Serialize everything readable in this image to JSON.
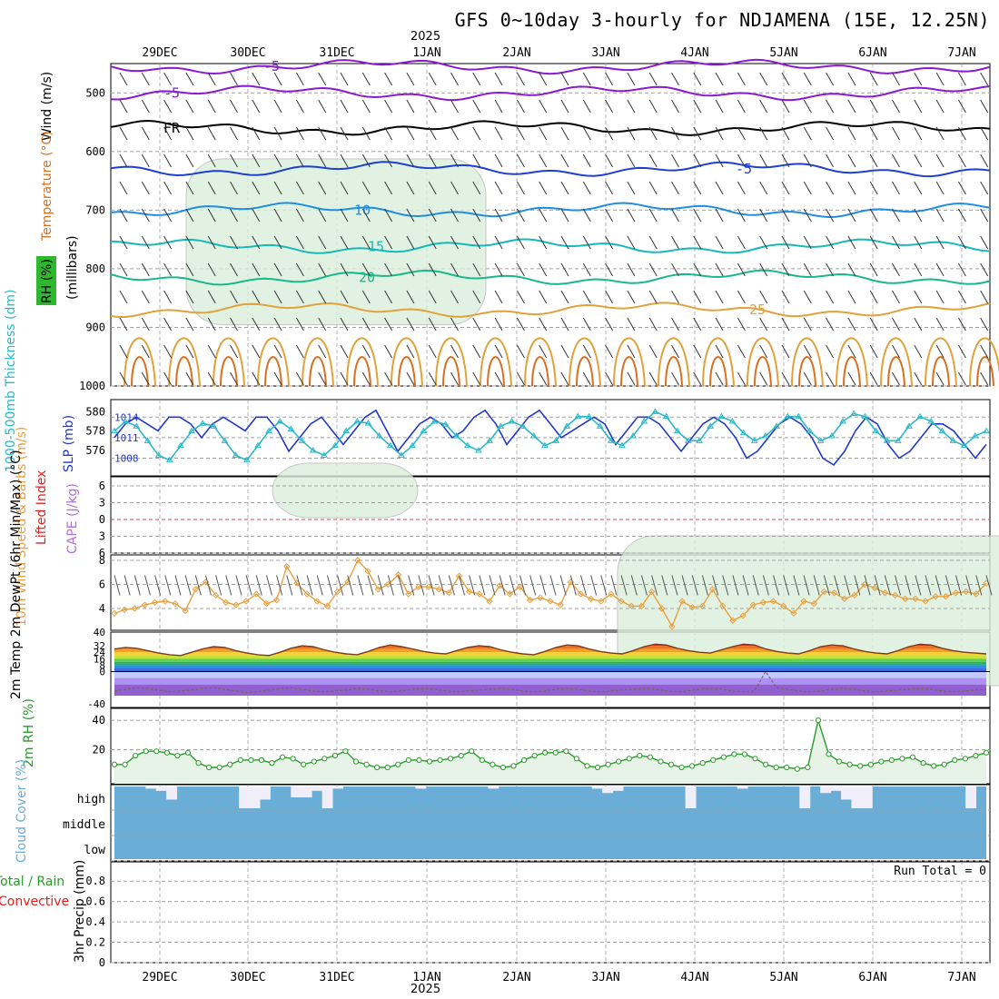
{
  "title": "GFS 0~10day 3-hourly for NDJAMENA (15E, 12.25N)",
  "year_label": "2025",
  "run_total": "Run Total = 0",
  "colors": {
    "purple": "#8a1ad0",
    "black": "#000000",
    "blue": "#1f3fd0",
    "lightblue": "#1e8ee0",
    "teal": "#17b8b8",
    "green": "#18b88a",
    "orange": "#e0a23a",
    "darkorange": "#d87020",
    "magenta": "#d0105a",
    "slp": "#2238c8",
    "thick": "#2ab8c8",
    "wind10m": "#e8a040",
    "rh2m": "#2a9a2a",
    "cloud": "#6aadd6",
    "grid": "#a0a0a0"
  },
  "chart_data": [
    {
      "panel": "upper-air",
      "type": "line",
      "y_axis_label": "(millibars)",
      "legend_labels": [
        "Wind (m/s)",
        "Temperature (°C)",
        "RH (%)"
      ],
      "ylim": [
        1000,
        450
      ],
      "y_ticks": [
        500,
        600,
        700,
        800,
        900,
        1000
      ],
      "x_ticks": [
        "29DEC",
        "30DEC",
        "31DEC",
        "1JAN",
        "2JAN",
        "3JAN",
        "4JAN",
        "5JAN",
        "6JAN",
        "7JAN"
      ],
      "isotherms": [
        {
          "label": "-5",
          "pressure": 455,
          "color": "#8a1ad0"
        },
        {
          "label": "-5",
          "pressure": 500,
          "color": "#8a1ad0"
        },
        {
          "label": "FR",
          "pressure": 560,
          "color": "#000000"
        },
        {
          "label": "-5",
          "pressure": 630,
          "color": "#1f3fd0"
        },
        {
          "label": "10",
          "pressure": 700,
          "color": "#1e8ee0"
        },
        {
          "label": "15",
          "pressure": 762,
          "color": "#17b8b8"
        },
        {
          "label": "20",
          "pressure": 815,
          "color": "#18b88a"
        },
        {
          "label": "25",
          "pressure": 870,
          "color": "#e0a23a"
        }
      ]
    },
    {
      "panel": "thickness-slp",
      "type": "line",
      "left_axis_label": "1000-500mb Thickness (dm)",
      "right_axis_label": "SLP (mb)",
      "left_ticks": [
        576,
        578,
        580
      ],
      "right_ticks": [
        1008,
        1011,
        1014
      ],
      "series": [
        {
          "name": "SLP",
          "values": [
            1011,
            1013,
            1014,
            1013,
            1012,
            1014,
            1014,
            1013,
            1011,
            1013,
            1014,
            1013,
            1012,
            1014,
            1014,
            1012,
            1009,
            1011,
            1013,
            1014,
            1012,
            1010,
            1012,
            1014,
            1015,
            1012,
            1009,
            1011,
            1013,
            1014,
            1013,
            1011,
            1012,
            1014,
            1015,
            1013,
            1010,
            1012,
            1014,
            1015,
            1013,
            1011,
            1012,
            1013,
            1014,
            1013,
            1010,
            1012,
            1014,
            1014,
            1013,
            1011,
            1009,
            1011,
            1013,
            1014,
            1013,
            1011,
            1008,
            1009,
            1011,
            1013,
            1014,
            1013,
            1011,
            1008,
            1007,
            1009,
            1012,
            1014,
            1013,
            1010,
            1008,
            1009,
            1011,
            1013,
            1013,
            1012,
            1010,
            1008,
            1010
          ]
        },
        {
          "name": "Thickness",
          "values": [
            578,
            579,
            578.5,
            577,
            575.5,
            575,
            576.5,
            578,
            578.8,
            578.5,
            577,
            575.5,
            575,
            576.5,
            578,
            579,
            578.2,
            577,
            576,
            575.5,
            576.5,
            578,
            579,
            578.8,
            577.5,
            576.5,
            575.5,
            576.5,
            578,
            579,
            578.7,
            577.5,
            576.5,
            576,
            577,
            578.5,
            579,
            578.5,
            577.5,
            576.5,
            577,
            578.5,
            579.5,
            579.5,
            578.5,
            577,
            576.5,
            577.5,
            579,
            580,
            579.5,
            578,
            577,
            577,
            578.5,
            579.5,
            579,
            577.8,
            577,
            577.5,
            578.5,
            579.5,
            579.5,
            578,
            577,
            577.5,
            579,
            579.8,
            579.5,
            578,
            577,
            577,
            578.5,
            579.5,
            579,
            578,
            577,
            576.5,
            577.5,
            578
          ]
        }
      ]
    },
    {
      "panel": "stability",
      "type": "line",
      "left_axis_label": "Lifted Index",
      "right_axis_label": "CAPE (J/kg)",
      "y_ticks": [
        -6,
        -3,
        0,
        3,
        6
      ],
      "series": []
    },
    {
      "panel": "wind10m",
      "type": "line",
      "y_axis_label": "10m Wind Speed & Barbs (m/s)",
      "y_ticks": [
        4,
        6,
        8
      ],
      "series": [
        {
          "name": "speed",
          "values": [
            3.6,
            3.9,
            4.0,
            4.3,
            4.5,
            4.6,
            4.4,
            3.8,
            5.6,
            6.2,
            5.1,
            4.5,
            4.3,
            4.6,
            5.2,
            4.4,
            4.7,
            7.5,
            6.1,
            5.2,
            4.6,
            4.2,
            5.4,
            6.2,
            8.0,
            7.1,
            5.6,
            6.0,
            6.8,
            5.2,
            5.8,
            5.8,
            5.6,
            5.3,
            6.7,
            5.4,
            5.2,
            4.6,
            5.9,
            5.2,
            5.8,
            4.7,
            4.9,
            4.6,
            4.3,
            6.2,
            5.2,
            4.8,
            4.6,
            5.2,
            4.6,
            4.2,
            4.2,
            5.4,
            4.0,
            2.5,
            4.6,
            4.1,
            4.2,
            5.6,
            4.2,
            3.0,
            3.4,
            4.3,
            4.5,
            4.6,
            4.2,
            3.6,
            4.6,
            4.4,
            5.4,
            5.3,
            4.8,
            5.1,
            6.0,
            5.7,
            5.3,
            5.1,
            4.8,
            4.8,
            4.6,
            5.0,
            5.0,
            5.3,
            5.4,
            5.2,
            6.1
          ]
        }
      ]
    },
    {
      "panel": "temperature2m",
      "type": "area",
      "y_axis_label": "2m Temp 2m DewPt (6hr Min/Max) (°C)",
      "y_ticks": [
        40,
        32,
        24,
        16,
        8,
        0,
        -8,
        -16,
        -24,
        -32,
        -40
      ],
      "series": [
        {
          "name": "temperature",
          "values": [
            28,
            30,
            29,
            26,
            23,
            21,
            20,
            24,
            28,
            31,
            30,
            26,
            23,
            21,
            20,
            24,
            29,
            32,
            31,
            27,
            24,
            22,
            21,
            25,
            30,
            33,
            31,
            28,
            25,
            23,
            22,
            26,
            30,
            32,
            31,
            27,
            24,
            22,
            21,
            25,
            30,
            33,
            32,
            28,
            25,
            23,
            22,
            26,
            31,
            34,
            33,
            29,
            26,
            24,
            23,
            27,
            31,
            34,
            33,
            28,
            25,
            23,
            22,
            26,
            31,
            33,
            32,
            28,
            25,
            23,
            22,
            26,
            31,
            34,
            33,
            29,
            26,
            24,
            23,
            22
          ]
        },
        {
          "name": "dewpoint",
          "values": [
            -24,
            -22,
            -20,
            -21,
            -23,
            -25,
            -24,
            -23,
            -21,
            -20,
            -22,
            -24,
            -26,
            -25,
            -23,
            -21,
            -20,
            -22,
            -24,
            -25,
            -24,
            -23,
            -21,
            -22,
            -24,
            -25,
            -24,
            -22,
            -21,
            -22,
            -24,
            -25,
            -24,
            -23,
            -22,
            -21,
            -22,
            -24,
            -25,
            -24,
            -22,
            -21,
            -22,
            -24,
            -25,
            -24,
            -23,
            -22,
            -21,
            -22,
            -24,
            -25,
            -24,
            -22,
            -21,
            -22,
            -24,
            -25,
            -24,
            0,
            -20,
            -22,
            -24,
            -25,
            -24,
            -22,
            -21,
            -22,
            -24,
            -25,
            -24,
            -23,
            -22,
            -21,
            -22,
            -24,
            -25,
            -24,
            -23,
            -22
          ]
        }
      ]
    },
    {
      "panel": "rh2m",
      "type": "area",
      "y_axis_label": "2m RH (%)",
      "y_ticks": [
        20,
        40
      ],
      "series": [
        {
          "name": "rh",
          "values": [
            10,
            10,
            16,
            19,
            19,
            18,
            16,
            18,
            11,
            8,
            8,
            10,
            13,
            13,
            13,
            11,
            15,
            14,
            10,
            12,
            14,
            16,
            19,
            12,
            10,
            8,
            8,
            10,
            13,
            13,
            12,
            13,
            14,
            16,
            19,
            13,
            10,
            8,
            9,
            13,
            16,
            18,
            18,
            19,
            14,
            9,
            8,
            10,
            12,
            14,
            16,
            15,
            12,
            10,
            8,
            9,
            11,
            13,
            15,
            17,
            17,
            14,
            10,
            8,
            8,
            7,
            8,
            40,
            17,
            12,
            10,
            9,
            10,
            12,
            13,
            14,
            15,
            11,
            9,
            10,
            13,
            14,
            16,
            18
          ]
        }
      ]
    },
    {
      "panel": "cloud-cover",
      "type": "bar",
      "y_axis_label": "Cloud Cover (%)",
      "levels": [
        "high",
        "middle",
        "low"
      ],
      "series": [
        {
          "name": "high",
          "values": [
            0,
            0,
            0,
            10,
            20,
            60,
            0,
            0,
            0,
            0,
            0,
            0,
            100,
            100,
            60,
            0,
            0,
            50,
            50,
            20,
            100,
            10,
            0,
            0,
            0,
            0,
            0,
            0,
            0,
            10,
            0,
            0,
            0,
            0,
            0,
            0,
            10,
            0,
            0,
            0,
            0,
            0,
            0,
            0,
            0,
            0,
            10,
            30,
            20,
            0,
            0,
            0,
            0,
            0,
            0,
            100,
            0,
            0,
            0,
            0,
            10,
            0,
            0,
            0,
            0,
            0,
            100,
            0,
            30,
            20,
            60,
            100,
            100,
            0,
            0,
            0,
            0,
            0,
            0,
            0,
            0,
            0,
            100,
            0
          ]
        }
      ]
    },
    {
      "panel": "precip",
      "type": "bar",
      "y_axis_label": "3hr Precip (mm)",
      "legend_labels": [
        "Total / Rain",
        "Convective"
      ],
      "y_ticks": [
        0,
        0.2,
        0.4,
        0.6,
        0.8
      ],
      "series": [
        {
          "name": "total",
          "values": []
        }
      ]
    }
  ]
}
